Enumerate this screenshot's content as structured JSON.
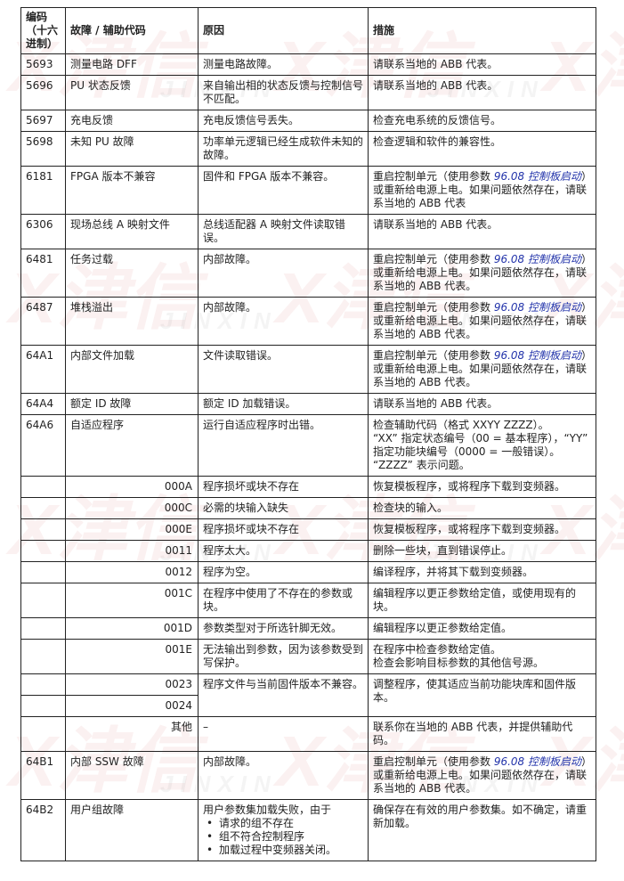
{
  "watermark": {
    "cn": "X津信",
    "en": "JINXIN"
  },
  "header": {
    "code": "编码（十六进制）",
    "fault": "故障 / 辅助代码",
    "cause": "原因",
    "action": "措施"
  },
  "rows": [
    {
      "code": "5693",
      "fault": "测量电路 DFF",
      "cause": "测量电路故障。",
      "action": "请联系当地的 ABB 代表。"
    },
    {
      "code": "5696",
      "fault": "PU 状态反馈",
      "cause": "来自输出相的状态反馈与控制信号不匹配。",
      "action": "请联系当地的 ABB 代表。"
    },
    {
      "code": "5697",
      "fault": "充电反馈",
      "cause": "充电反馈信号丢失。",
      "action": "检查充电系统的反馈信号。"
    },
    {
      "code": "5698",
      "fault": "未知 PU 故障",
      "cause": "功率单元逻辑已经生成软件未知的故障。",
      "action": "检查逻辑和软件的兼容性。"
    },
    {
      "code": "6181",
      "fault": "FPGA 版本不兼容",
      "cause": "固件和 FPGA 版本不兼容。",
      "action": {
        "pre": "重启控制单元（使用参数 ",
        "link": "96.08 控制板启动",
        "post": "）或重新给电源上电。如果问题依然存在，请联系当地的 ABB 代表"
      }
    },
    {
      "code": "6306",
      "fault": "现场总线 A 映射文件",
      "cause": "总线适配器 A 映射文件读取错误。",
      "action": "请联系当地的 ABB 代表。"
    },
    {
      "code": "6481",
      "fault": "任务过载",
      "cause": "内部故障。",
      "action": {
        "pre": "重启控制单元（使用参数 ",
        "link": "96.08 控制板启动",
        "post": "）或重新给电源上电。如果问题依然存在，请联系当地的 ABB 代表。"
      }
    },
    {
      "code": "6487",
      "fault": "堆栈溢出",
      "cause": "内部故障。",
      "action": {
        "pre": "重启控制单元（使用参数 ",
        "link": "96.08 控制板启动",
        "post": "）或重新给电源上电。如果问题依然存在，请联系当地的 ABB 代表。"
      }
    },
    {
      "code": "64A1",
      "fault": "内部文件加载",
      "cause": "文件读取错误。",
      "action": {
        "pre": "重启控制单元（使用参数 ",
        "link": "96.08 控制板启动",
        "post": "）或重新给电源上电。如果问题依然存在，请联系当地的 ABB 代表。"
      }
    },
    {
      "code": "64A4",
      "fault": "额定 ID 故障",
      "cause": "额定 ID 加载错误。",
      "action": "请联系当地的 ABB 代表。"
    },
    {
      "code": "64A6",
      "fault": "自适应程序",
      "cause": "运行自适应程序时出错。",
      "action": {
        "lines": [
          "检查辅助代码（格式 XXYY ZZZZ）。",
          "“XX” 指定状态编号（00 = 基本程序），“YY” 指定功能块编号（0000 = 一般错误）。",
          "“ZZZZ” 表示问题。"
        ]
      }
    },
    {
      "code": "",
      "sub": "000A",
      "cause": "程序损坏或块不存在",
      "action": "恢复模板程序，或将程序下载到变频器。"
    },
    {
      "code": "",
      "sub": "000C",
      "cause": "必需的块输入缺失",
      "action": "检查块的输入。"
    },
    {
      "code": "",
      "sub": "000E",
      "cause": "程序损坏或块不存在",
      "action": "恢复模板程序，或将程序下载到变频器。"
    },
    {
      "code": "",
      "sub": "0011",
      "cause": "程序太大。",
      "action": "删除一些块，直到错误停止。"
    },
    {
      "code": "",
      "sub": "0012",
      "cause": "程序为空。",
      "action": "编译程序，并将其下载到变频器。"
    },
    {
      "code": "",
      "sub": "001C",
      "cause": "在程序中使用了不存在的参数或块。",
      "action": "编辑程序以更正参数给定值，或使用现有的块。"
    },
    {
      "code": "",
      "sub": "001D",
      "cause": "参数类型对于所选针脚无效。",
      "action": "编辑程序以更正参数给定值。"
    },
    {
      "code": "",
      "sub": "001E",
      "cause": "无法输出到参数，因为该参数受到写保护。",
      "action": {
        "lines": [
          "在程序中检查参数给定值。",
          "检查会影响目标参数的其他信号源。"
        ]
      }
    },
    {
      "code": "",
      "sub": "0023",
      "cause": "程序文件与当前固件版本不兼容。",
      "action": "调整程序，使其适应当前功能块库和固件版本。",
      "span": 2
    },
    {
      "code": "",
      "sub": "0024",
      "merged": true
    },
    {
      "code": "",
      "sub": "其他",
      "cause": "–",
      "action": "联系你在当地的 ABB 代表，并提供辅助代码。"
    },
    {
      "code": "64B1",
      "fault": "内部 SSW 故障",
      "cause": "内部故障。",
      "action": {
        "pre": "重启控制单元（使用参数 ",
        "link": "96.08 控制板启动",
        "post": "）或重新给电源上电。如果问题依然存在，请联系当地的 ABB 代表。"
      }
    },
    {
      "code": "64B2",
      "fault": "用户组故障",
      "cause": {
        "text": "用户参数集加载失败，由于",
        "bullets": [
          "请求的组不存在",
          "组不符合控制程序",
          "加载过程中变频器关闭。"
        ]
      },
      "action": "确保存在有效的用户参数集。如不确定，请重新加载。"
    }
  ]
}
